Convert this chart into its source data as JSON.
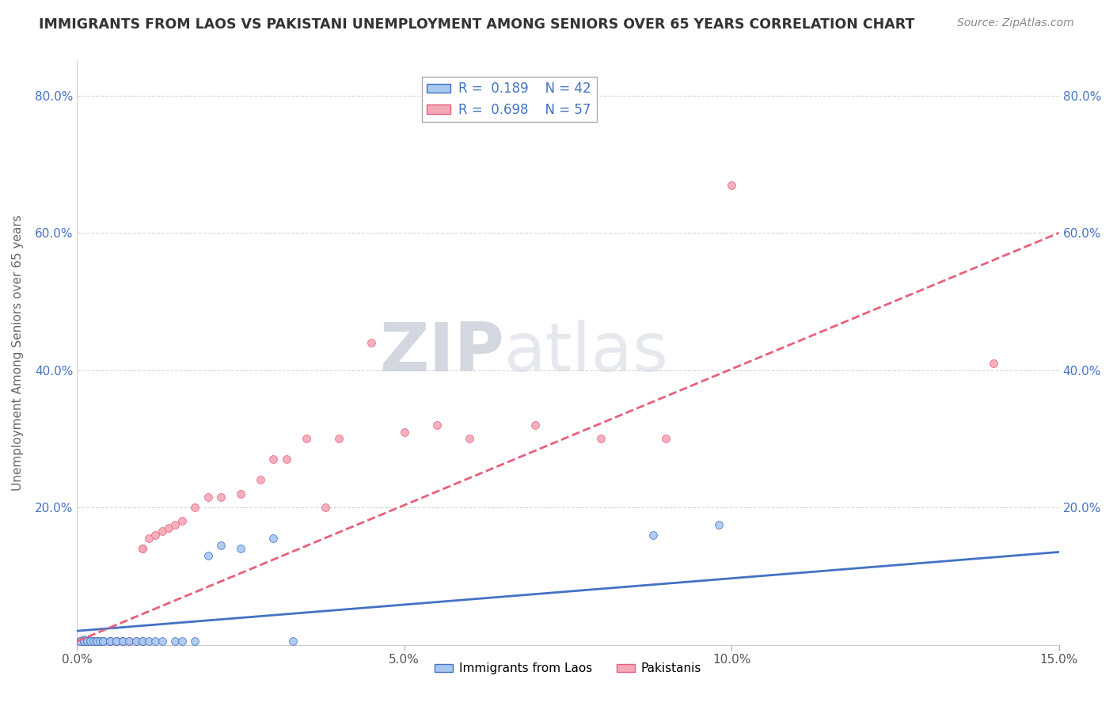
{
  "title": "IMMIGRANTS FROM LAOS VS PAKISTANI UNEMPLOYMENT AMONG SENIORS OVER 65 YEARS CORRELATION CHART",
  "source": "Source: ZipAtlas.com",
  "ylabel": "Unemployment Among Seniors over 65 years",
  "xlim": [
    0,
    0.15
  ],
  "ylim": [
    0,
    0.85
  ],
  "xticks": [
    0.0,
    0.05,
    0.1,
    0.15
  ],
  "xticklabels": [
    "0.0%",
    "5.0%",
    "10.0%",
    "15.0%"
  ],
  "yticks": [
    0.0,
    0.2,
    0.4,
    0.6,
    0.8
  ],
  "yticklabels": [
    "",
    "20.0%",
    "40.0%",
    "60.0%",
    "80.0%"
  ],
  "legend_labels": [
    "Immigrants from Laos",
    "Pakistanis"
  ],
  "laos_color": "#a8c8f0",
  "pak_color": "#f4a8b8",
  "laos_line_color": "#4472c4",
  "pak_line_color": "#e8607a",
  "watermark_zip": "ZIP",
  "watermark_atlas": "atlas",
  "laos_x": [
    0.0005,
    0.001,
    0.001,
    0.001,
    0.001,
    0.0015,
    0.0015,
    0.002,
    0.002,
    0.002,
    0.0025,
    0.003,
    0.003,
    0.003,
    0.0035,
    0.004,
    0.004,
    0.004,
    0.005,
    0.005,
    0.005,
    0.006,
    0.006,
    0.007,
    0.007,
    0.008,
    0.009,
    0.01,
    0.01,
    0.011,
    0.012,
    0.013,
    0.015,
    0.016,
    0.018,
    0.02,
    0.022,
    0.025,
    0.03,
    0.033,
    0.088,
    0.098
  ],
  "laos_y": [
    0.005,
    0.005,
    0.005,
    0.007,
    0.005,
    0.005,
    0.005,
    0.005,
    0.005,
    0.005,
    0.005,
    0.005,
    0.005,
    0.005,
    0.005,
    0.005,
    0.005,
    0.005,
    0.005,
    0.005,
    0.005,
    0.005,
    0.005,
    0.005,
    0.005,
    0.005,
    0.005,
    0.005,
    0.005,
    0.005,
    0.005,
    0.005,
    0.005,
    0.005,
    0.005,
    0.13,
    0.145,
    0.14,
    0.155,
    0.005,
    0.16,
    0.175
  ],
  "pak_x": [
    0.0005,
    0.0005,
    0.001,
    0.001,
    0.001,
    0.001,
    0.0015,
    0.0015,
    0.002,
    0.002,
    0.002,
    0.002,
    0.0025,
    0.003,
    0.003,
    0.003,
    0.003,
    0.004,
    0.004,
    0.004,
    0.005,
    0.005,
    0.005,
    0.006,
    0.006,
    0.007,
    0.007,
    0.008,
    0.008,
    0.009,
    0.01,
    0.01,
    0.011,
    0.012,
    0.013,
    0.014,
    0.015,
    0.016,
    0.018,
    0.02,
    0.022,
    0.025,
    0.028,
    0.03,
    0.032,
    0.035,
    0.038,
    0.04,
    0.045,
    0.05,
    0.055,
    0.06,
    0.07,
    0.08,
    0.09,
    0.1,
    0.14
  ],
  "pak_y": [
    0.005,
    0.005,
    0.005,
    0.005,
    0.005,
    0.007,
    0.005,
    0.005,
    0.005,
    0.005,
    0.005,
    0.005,
    0.005,
    0.005,
    0.005,
    0.005,
    0.005,
    0.005,
    0.005,
    0.005,
    0.005,
    0.005,
    0.005,
    0.005,
    0.005,
    0.005,
    0.005,
    0.005,
    0.005,
    0.005,
    0.14,
    0.14,
    0.155,
    0.16,
    0.165,
    0.17,
    0.175,
    0.18,
    0.2,
    0.215,
    0.215,
    0.22,
    0.24,
    0.27,
    0.27,
    0.3,
    0.2,
    0.3,
    0.44,
    0.31,
    0.32,
    0.3,
    0.32,
    0.3,
    0.3,
    0.67,
    0.41
  ],
  "laos_trend_x": [
    0.0,
    0.15
  ],
  "laos_trend_y": [
    0.02,
    0.135
  ],
  "pak_trend_x": [
    0.0,
    0.15
  ],
  "pak_trend_y": [
    0.005,
    0.6
  ]
}
